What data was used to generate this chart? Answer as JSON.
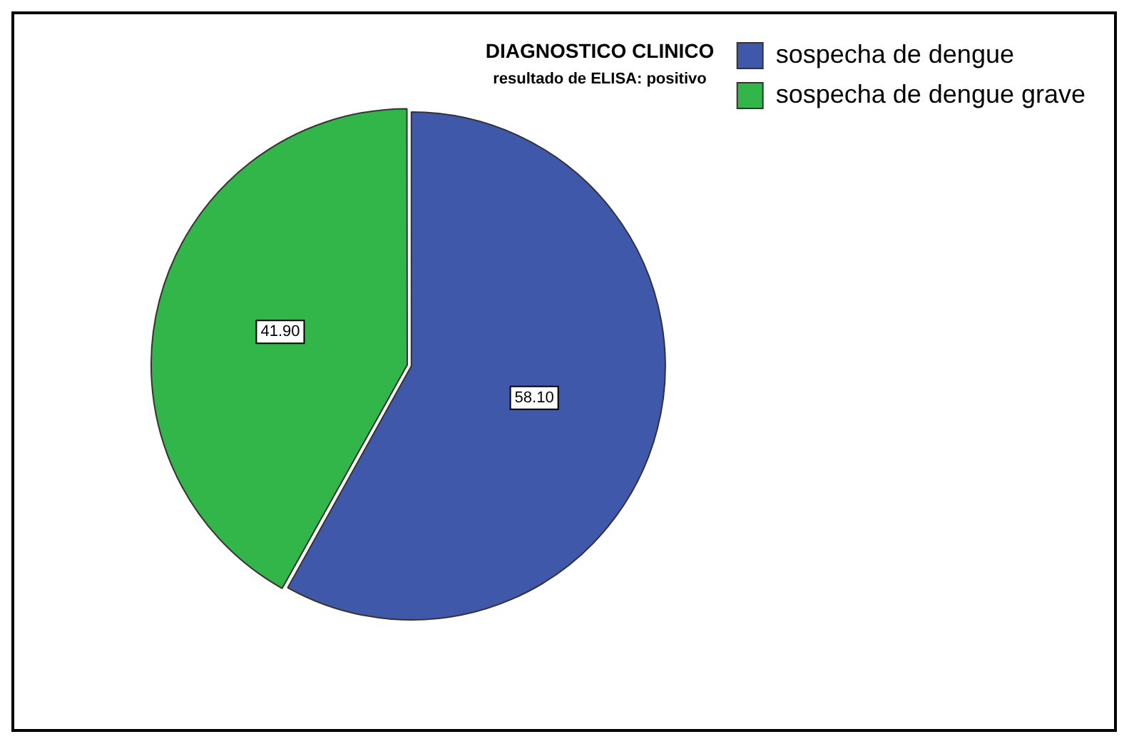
{
  "chart_data": {
    "type": "pie",
    "title": "DIAGNOSTICO CLINICO",
    "subtitle": "resultado de ELISA: positivo",
    "categories": [
      "sospecha de dengue",
      "sospecha de dengue grave"
    ],
    "values": [
      58.1,
      41.9
    ],
    "colors": [
      "#3f58a9",
      "#32b64a"
    ],
    "value_labels": [
      "58.10",
      "41.90"
    ],
    "legend": "top right"
  }
}
